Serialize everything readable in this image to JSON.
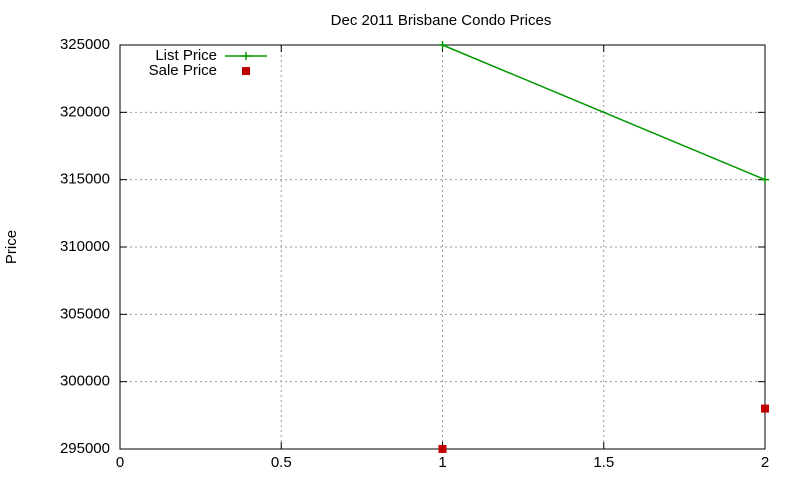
{
  "chart_data": {
    "type": "line",
    "title": "Dec 2011 Brisbane Condo Prices",
    "y_label": "Price",
    "x": [
      1,
      2
    ],
    "series": [
      {
        "name": "List Price",
        "color": "#009900",
        "line": true,
        "marker": "plus",
        "values": [
          325000,
          315000
        ]
      },
      {
        "name": "Sale Price",
        "color": "#c00000",
        "line": false,
        "marker": "square",
        "values": [
          295000,
          298000
        ]
      }
    ],
    "xlim": [
      0,
      2
    ],
    "xticks": [
      0,
      0.5,
      1,
      1.5,
      2
    ],
    "ylim": [
      295000,
      325000
    ],
    "yticks": [
      295000,
      300000,
      305000,
      310000,
      315000,
      320000,
      325000
    ],
    "grid": true,
    "legend": "top-left"
  }
}
